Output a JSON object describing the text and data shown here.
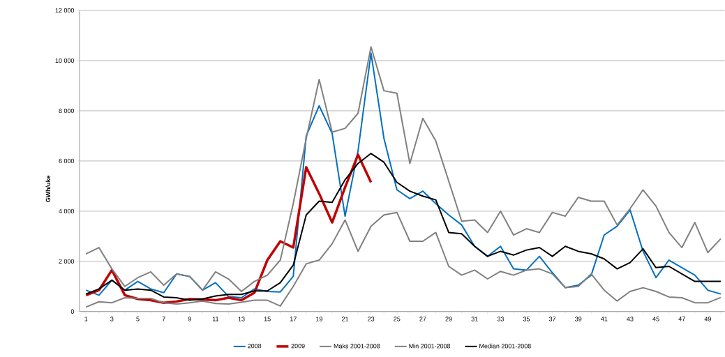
{
  "chart_data": {
    "type": "line",
    "ylabel": "GWh/uke",
    "categories": [
      "1",
      null,
      "3",
      null,
      "5",
      null,
      "7",
      null,
      "9",
      null,
      "11",
      null,
      "13",
      null,
      "15",
      null,
      "17",
      null,
      "19",
      null,
      "21",
      null,
      "23",
      null,
      "25",
      null,
      "27",
      null,
      "29",
      null,
      "31",
      null,
      "33",
      null,
      "35",
      null,
      "37",
      null,
      "39",
      null,
      "41",
      null,
      "43",
      null,
      "45",
      null,
      "47",
      null,
      "49",
      null
    ],
    "ylim": [
      0,
      12000
    ],
    "yticks": [
      0,
      {
        "value": 2000,
        "label": "2 000"
      },
      {
        "value": 4000,
        "label": "4 000"
      },
      {
        "value": 6000,
        "label": "6 000"
      },
      {
        "value": 8000,
        "label": "8 000"
      },
      {
        "value": 10000,
        "label": "10 000"
      },
      {
        "value": 12000,
        "label": "12 000"
      }
    ],
    "grid": "y",
    "legend": "bottom",
    "marker": "none",
    "line_style": "solid",
    "series": [
      {
        "name": "2008",
        "color": "#0070c0",
        "values": [
          850,
          650,
          1250,
          850,
          1200,
          900,
          750,
          1500,
          1400,
          850,
          1150,
          600,
          550,
          900,
          800,
          780,
          1400,
          7000,
          8200,
          7100,
          3800,
          6400,
          10300,
          6900,
          4850,
          4500,
          4800,
          4300,
          3850,
          3450,
          2600,
          2200,
          2600,
          1700,
          1650,
          2200,
          1550,
          950,
          1050,
          1450,
          3050,
          3400,
          4050,
          2400,
          1350,
          2050,
          1750,
          1450,
          850,
          700
        ]
      },
      {
        "name": "2009",
        "color": "#c00000",
        "values": [
          650,
          850,
          1650,
          650,
          500,
          450,
          350,
          400,
          500,
          480,
          450,
          550,
          450,
          750,
          2050,
          2800,
          2550,
          5750,
          4700,
          3550,
          4950,
          6250,
          5150,
          null,
          null,
          null,
          null,
          null,
          null,
          null,
          null,
          null,
          null,
          null,
          null,
          null,
          null,
          null,
          null,
          null,
          null,
          null,
          null,
          null,
          null,
          null,
          null,
          null,
          null,
          null
        ]
      },
      {
        "name": "Maks 2001-2008",
        "color": "#808080",
        "values": [
          2300,
          2550,
          1700,
          1000,
          1350,
          1580,
          1050,
          1500,
          1400,
          850,
          1580,
          1300,
          800,
          1200,
          1450,
          2050,
          4300,
          6900,
          9250,
          7150,
          7300,
          7900,
          10550,
          8800,
          8700,
          5900,
          7700,
          6800,
          5200,
          3600,
          3650,
          3150,
          4000,
          3050,
          3300,
          3150,
          3950,
          3800,
          4550,
          4400,
          4400,
          3450,
          4100,
          4850,
          4200,
          3150,
          2550,
          3550,
          2350,
          2900
        ]
      },
      {
        "name": "Min 2001-2008",
        "color": "#808080",
        "values": [
          180,
          390,
          350,
          550,
          520,
          520,
          350,
          300,
          350,
          420,
          320,
          300,
          370,
          450,
          450,
          220,
          1000,
          1900,
          2050,
          2700,
          3650,
          2400,
          3400,
          3850,
          3950,
          2800,
          2800,
          3150,
          1800,
          1450,
          1650,
          1300,
          1600,
          1450,
          1650,
          1700,
          1500,
          950,
          1000,
          1500,
          850,
          420,
          800,
          950,
          800,
          580,
          550,
          350,
          350,
          560
        ]
      },
      {
        "name": "Median 2001-2008",
        "color": "#000000",
        "values": [
          700,
          900,
          1250,
          850,
          900,
          850,
          580,
          550,
          450,
          500,
          620,
          680,
          680,
          820,
          820,
          1150,
          1850,
          3850,
          4400,
          4350,
          5250,
          5900,
          6300,
          5950,
          5150,
          4800,
          4600,
          4450,
          3150,
          3100,
          2600,
          2200,
          2400,
          2250,
          2450,
          2550,
          2200,
          2600,
          2400,
          2300,
          2100,
          1700,
          1950,
          2500,
          1750,
          1800,
          1500,
          1200,
          1200,
          1200
        ]
      }
    ]
  }
}
